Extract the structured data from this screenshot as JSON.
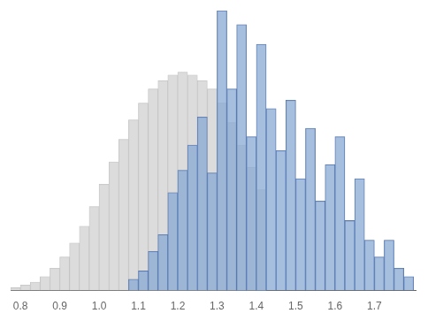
{
  "chart_data": {
    "type": "histogram",
    "series": [
      {
        "color": "#d8d8d8",
        "bins": [
          0.775,
          0.8,
          0.825,
          0.85,
          0.875,
          0.9,
          0.925,
          0.95,
          0.975,
          1.0,
          1.025,
          1.05,
          1.075,
          1.1,
          1.125,
          1.15,
          1.175,
          1.2,
          1.225,
          1.25,
          1.275,
          1.3,
          1.325,
          1.35,
          1.375,
          1.4,
          1.425
        ],
        "values": [
          1,
          2,
          3,
          5,
          8,
          12,
          17,
          23,
          30,
          38,
          46,
          54,
          61,
          67,
          72,
          75,
          77,
          78,
          77,
          75,
          72,
          67,
          60,
          52,
          44,
          36
        ]
      },
      {
        "color": "#8aaad4",
        "bins": [
          1.075,
          1.1,
          1.125,
          1.15,
          1.175,
          1.2,
          1.225,
          1.25,
          1.275,
          1.3,
          1.325,
          1.35,
          1.375,
          1.4,
          1.425,
          1.45,
          1.475,
          1.5,
          1.525,
          1.55,
          1.575,
          1.6,
          1.625,
          1.65,
          1.675,
          1.7,
          1.725,
          1.75,
          1.775,
          1.8
        ],
        "values": [
          4,
          7,
          14,
          20,
          35,
          43,
          52,
          62,
          42,
          100,
          72,
          95,
          55,
          88,
          65,
          50,
          68,
          40,
          58,
          32,
          45,
          55,
          25,
          40,
          18,
          12,
          18,
          8,
          5
        ]
      }
    ],
    "xlim": [
      0.775,
      1.805
    ],
    "xticks": [
      0.8,
      0.9,
      {
        "value": 1.0,
        "label": "1.0"
      },
      1.1,
      1.2,
      1.3,
      1.4,
      1.5,
      1.6,
      1.7
    ],
    "ylim": [
      0,
      100
    ],
    "tick_labels": "x",
    "grid": false
  }
}
